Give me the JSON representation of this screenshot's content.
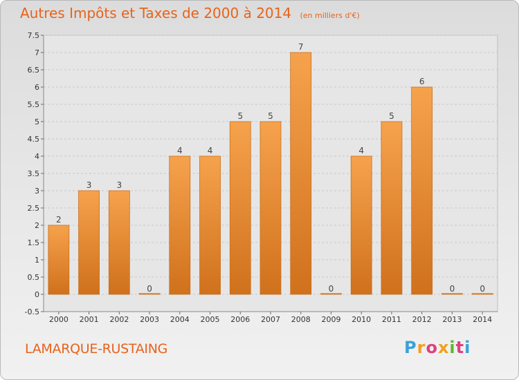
{
  "chart_data": {
    "type": "bar",
    "title": "Autres Impôts et Taxes de 2000 à 2014",
    "subtitle": "(en milliers d'€)",
    "categories": [
      "2000",
      "2001",
      "2002",
      "2003",
      "2004",
      "2005",
      "2006",
      "2007",
      "2008",
      "2009",
      "2010",
      "2011",
      "2012",
      "2013",
      "2014"
    ],
    "values": [
      2,
      3,
      3,
      0,
      4,
      4,
      5,
      5,
      7,
      0,
      4,
      5,
      6,
      0,
      0
    ],
    "data_labels": [
      "2",
      "3",
      "3",
      "0",
      "4",
      "4",
      "5",
      "5",
      "7",
      "0",
      "4",
      "5",
      "6",
      "0",
      "0"
    ],
    "ylim": [
      -0.5,
      7.5
    ],
    "yticks": [
      "7.5",
      "7",
      "6.5",
      "6",
      "5.5",
      "5",
      "4.5",
      "4",
      "3.5",
      "3",
      "2.5",
      "2",
      "1.5",
      "1",
      "0.5",
      "0",
      "-0.5"
    ],
    "ytick_values": [
      7.5,
      7,
      6.5,
      6,
      5.5,
      5,
      4.5,
      4,
      3.5,
      3,
      2.5,
      2,
      1.5,
      1,
      0.5,
      0,
      -0.5
    ],
    "xlabel": "",
    "ylabel": "",
    "grid": true,
    "bar_color": "#f39c3f"
  },
  "footer": {
    "commune": "LAMARQUE-RUSTAING"
  },
  "logo": {
    "letters": [
      "P",
      "r",
      "o",
      "x",
      "i",
      "t",
      "i"
    ],
    "colors": [
      "#3aa1d8",
      "#f0a020",
      "#e04080",
      "#f0a020",
      "#5cb82c",
      "#e04080",
      "#3aa1d8"
    ]
  }
}
